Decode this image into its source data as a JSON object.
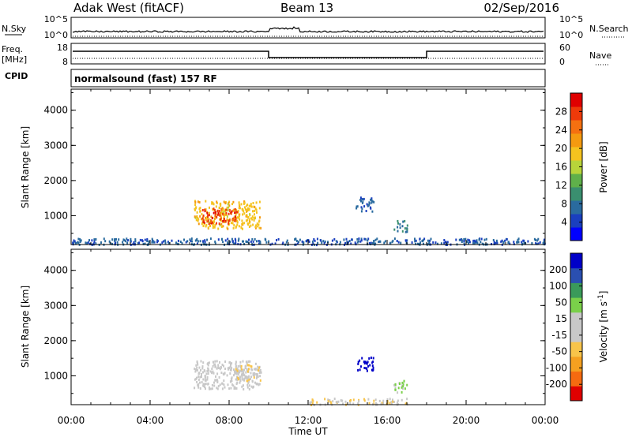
{
  "header": {
    "station": "Adak West (fitACF)",
    "beam": "Beam 13",
    "date": "02/Sep/2016"
  },
  "top_panels": {
    "nsky_label": "N.Sky",
    "nsky_ticks": [
      "10^5",
      "10^0"
    ],
    "nsearch_label": "N.Search",
    "nsearch_ticks": [
      "10^5",
      "10^0"
    ],
    "freq_label": "Freq.",
    "freq_unit": "[MHz]",
    "freq_ticks": [
      "18",
      "8"
    ],
    "nave_label": "Nave",
    "nave_ticks": [
      "60",
      "0"
    ],
    "cpid_label": "CPID",
    "cpid_text": "normalsound (fast) 157 RF"
  },
  "colors": {
    "power_scale": [
      "#0000ff",
      "#1a3fbf",
      "#2a6b9f",
      "#3a8f6f",
      "#5fb04a",
      "#b8d43a",
      "#f5c31f",
      "#f59a10",
      "#f57010",
      "#ee3a0a",
      "#e00000"
    ],
    "velocity_scale": [
      "#e00000",
      "#f56a10",
      "#f5a020",
      "#f8c44a",
      "#c8c8c8",
      "#c8c8c8",
      "#7ad04a",
      "#3a9a5a",
      "#2a4fb0",
      "#0000c8"
    ],
    "line": "#000000"
  },
  "chart_data": [
    {
      "type": "heatmap",
      "title": "Power",
      "xlabel": "",
      "ylabel": "Slant Range [km]",
      "x_ticks": [
        "00:00",
        "04:00",
        "08:00",
        "12:00",
        "16:00",
        "20:00",
        "00:00"
      ],
      "x_range_hours": [
        0,
        24
      ],
      "y_ticks": [
        "1000",
        "2000",
        "3000",
        "4000"
      ],
      "y_range_km": [
        180,
        4600
      ],
      "colorbar_label": "Power [dB]",
      "colorbar_ticks": [
        "4",
        "8",
        "12",
        "16",
        "20",
        "24",
        "28"
      ],
      "colorbar_range": [
        0,
        30
      ],
      "regions": [
        {
          "t0": 6.2,
          "t1": 9.6,
          "r0": 650,
          "r1": 1450,
          "value": 18
        },
        {
          "t0": 6.6,
          "t1": 8.4,
          "r0": 800,
          "r1": 1250,
          "value": 26
        },
        {
          "t0": 14.4,
          "t1": 15.3,
          "r0": 1150,
          "r1": 1550,
          "value": 6
        },
        {
          "t0": 16.3,
          "t1": 17.0,
          "r0": 550,
          "r1": 900,
          "value": 8
        },
        {
          "t0": 0.0,
          "t1": 24.0,
          "r0": 200,
          "r1": 380,
          "value": 6
        }
      ]
    },
    {
      "type": "heatmap",
      "title": "Velocity",
      "xlabel": "Time UT",
      "ylabel": "Slant Range [km]",
      "x_ticks": [
        "00:00",
        "04:00",
        "08:00",
        "12:00",
        "16:00",
        "20:00",
        "00:00"
      ],
      "x_range_hours": [
        0,
        24
      ],
      "y_ticks": [
        "1000",
        "2000",
        "3000",
        "4000"
      ],
      "y_range_km": [
        180,
        4600
      ],
      "colorbar_label": "Velocity [m s-1]",
      "colorbar_ticks": [
        "-200",
        "-100",
        "-50",
        "-15",
        "15",
        "50",
        "100",
        "200"
      ],
      "colorbar_range": [
        -250,
        250
      ],
      "regions": [
        {
          "t0": 6.2,
          "t1": 9.6,
          "r0": 650,
          "r1": 1450,
          "value": 0
        },
        {
          "t0": 8.3,
          "t1": 9.6,
          "r0": 850,
          "r1": 1350,
          "value": -40
        },
        {
          "t0": 14.4,
          "t1": 15.3,
          "r0": 1150,
          "r1": 1550,
          "value": 230
        },
        {
          "t0": 16.3,
          "t1": 17.0,
          "r0": 550,
          "r1": 900,
          "value": 60
        },
        {
          "t0": 12.0,
          "t1": 17.0,
          "r0": 200,
          "r1": 380,
          "value": -40
        }
      ]
    }
  ]
}
